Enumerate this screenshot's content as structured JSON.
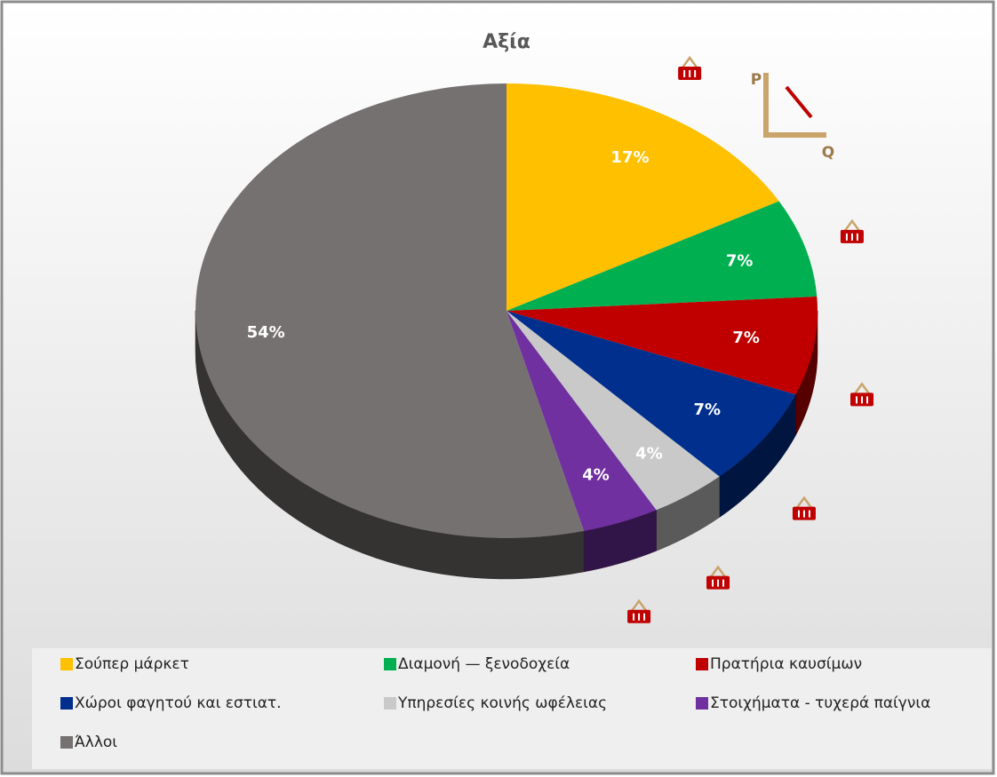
{
  "chart_data": {
    "type": "pie",
    "title": "Αξία",
    "categories": [
      "Σούπερ μάρκετ",
      "Διαμονή — ξενοδοχεία",
      "Πρατήρια καυσίμων",
      "Χώροι φαγητού και εστιατ.",
      "Υπηρεσίες κοινής ωφέλειας",
      "Στοιχήματα - τυχερά παίγνια",
      "Άλλοι"
    ],
    "values": [
      17,
      7,
      7,
      7,
      4,
      4,
      54
    ],
    "value_labels": [
      "17%",
      "7%",
      "7%",
      "7%",
      "4%",
      "4%",
      "54%"
    ],
    "colors": [
      "#FFC000",
      "#00B050",
      "#C00000",
      "#002F8E",
      "#C9C9C9",
      "#7030A0",
      "#767171"
    ],
    "annotations": [
      "P",
      "Q"
    ]
  }
}
